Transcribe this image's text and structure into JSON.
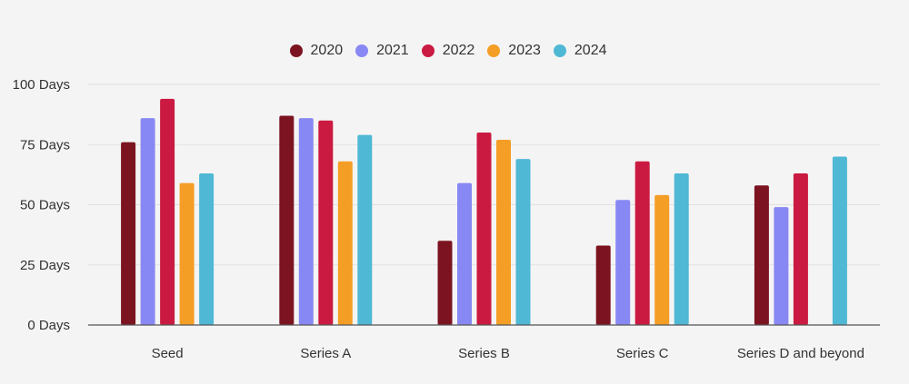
{
  "chart_data": {
    "type": "bar",
    "categories": [
      "Seed",
      "Series A",
      "Series B",
      "Series C",
      "Series D and beyond"
    ],
    "series": [
      {
        "name": "2020",
        "color": "#7b1420",
        "values": [
          76,
          87,
          35,
          33,
          58
        ]
      },
      {
        "name": "2021",
        "color": "#8888f4",
        "values": [
          86,
          86,
          59,
          52,
          49
        ]
      },
      {
        "name": "2022",
        "color": "#cb1a41",
        "values": [
          94,
          85,
          80,
          68,
          63
        ]
      },
      {
        "name": "2023",
        "color": "#f59e25",
        "values": [
          59,
          68,
          77,
          54,
          null
        ]
      },
      {
        "name": "2024",
        "color": "#4fb8d4",
        "values": [
          63,
          79,
          69,
          63,
          70
        ]
      }
    ],
    "yticks": [
      "0 Days",
      "25 Days",
      "50 Days",
      "75 Days",
      "100 Days"
    ],
    "ytick_values": [
      0,
      25,
      50,
      75,
      100
    ],
    "ylim": [
      0,
      100
    ],
    "grid": true,
    "legend_position": "top-center"
  }
}
